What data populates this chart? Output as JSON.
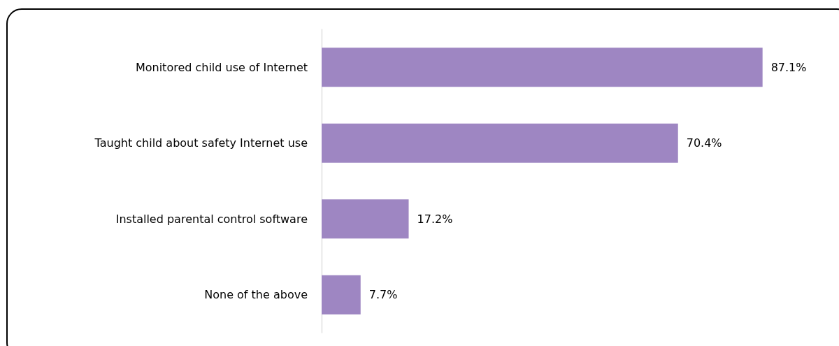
{
  "chart_data": {
    "type": "bar",
    "orientation": "horizontal",
    "categories": [
      "Monitored child use of Internet",
      "Taught child about safety Internet use",
      "Installed parental control software",
      "None of the above"
    ],
    "values": [
      87.1,
      70.4,
      17.2,
      7.7
    ],
    "value_labels": [
      "87.1%",
      "70.4%",
      "17.2%",
      "7.7%"
    ],
    "color": "#9e86c2"
  }
}
